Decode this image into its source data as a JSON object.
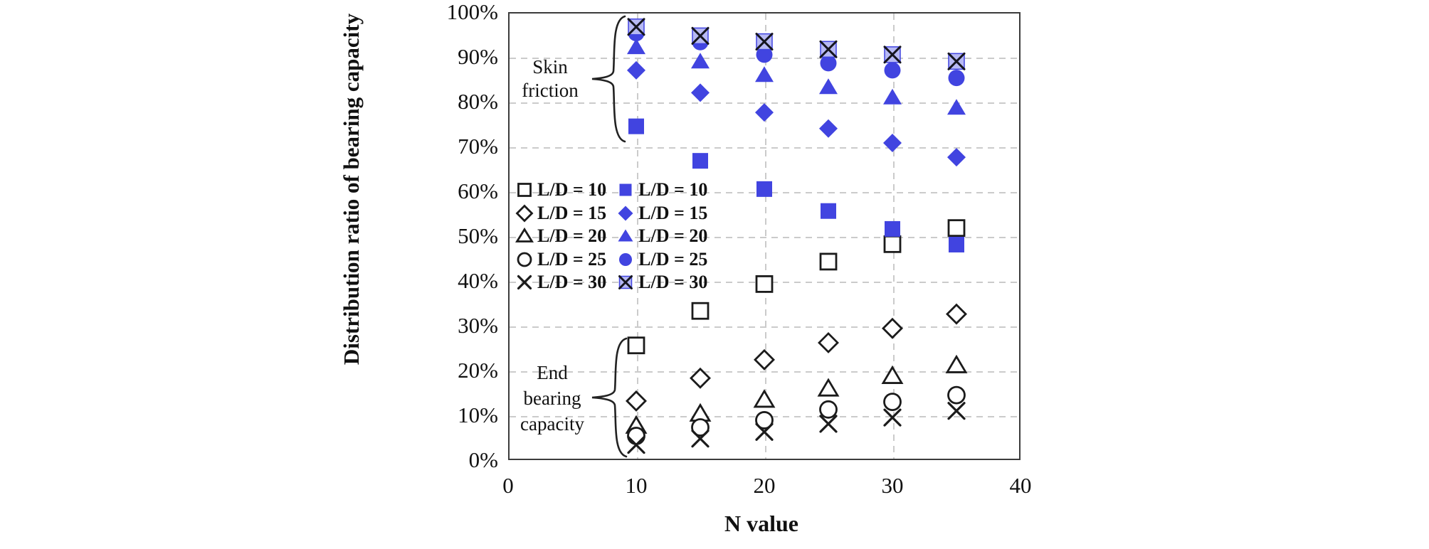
{
  "chart_data": {
    "type": "scatter",
    "title": "",
    "xlabel": "N value",
    "ylabel": "Distribution ratio of bearing capacity",
    "xlim": [
      0,
      40
    ],
    "ylim_pct": [
      0,
      100
    ],
    "x_tick_labels": [
      "0",
      "10",
      "20",
      "30",
      "40"
    ],
    "x_tick_values": [
      0,
      10,
      20,
      30,
      40
    ],
    "y_tick_labels": [
      "0%",
      "10%",
      "20%",
      "30%",
      "40%",
      "50%",
      "60%",
      "70%",
      "80%",
      "90%",
      "100%"
    ],
    "y_tick_values": [
      0,
      10,
      20,
      30,
      40,
      50,
      60,
      70,
      80,
      90,
      100
    ],
    "grid": "dashed, vertical at 10/20/30 and horizontal every 10%",
    "x": [
      10,
      15,
      20,
      25,
      30,
      35
    ],
    "colors": {
      "filled_series": "#4144e0",
      "xsquare_fill": "#b7b9f4",
      "open_stroke": "#1b1b1b",
      "grid": "#cbcbcb",
      "frame": "#3c3c3c"
    },
    "groups": [
      {
        "name": "End bearing capacity",
        "style": "open",
        "series": [
          {
            "label": "L/D = 10",
            "marker": "square",
            "values": [
              25.6,
              33.3,
              39.3,
              44.3,
              48.2,
              51.8
            ]
          },
          {
            "label": "L/D = 15",
            "marker": "diamond",
            "values": [
              13.2,
              18.3,
              22.4,
              26.2,
              29.4,
              32.6
            ]
          },
          {
            "label": "L/D = 20",
            "marker": "triangle",
            "values": [
              7.7,
              10.4,
              13.5,
              16.0,
              18.8,
              21.2
            ]
          },
          {
            "label": "L/D = 25",
            "marker": "circle",
            "values": [
              5.4,
              7.3,
              8.9,
              11.3,
              13.0,
              14.5
            ]
          },
          {
            "label": "L/D = 30",
            "marker": "x",
            "values": [
              3.4,
              4.8,
              6.3,
              8.1,
              9.5,
              11.0
            ]
          }
        ]
      },
      {
        "name": "Skin friction",
        "style": "filled",
        "series": [
          {
            "label": "L/D = 10",
            "marker": "square",
            "values": [
              74.5,
              66.8,
              60.5,
              55.6,
              51.6,
              48.1
            ]
          },
          {
            "label": "L/D = 15",
            "marker": "diamond",
            "values": [
              87.0,
              82.0,
              77.6,
              74.0,
              70.8,
              67.6
            ]
          },
          {
            "label": "L/D = 20",
            "marker": "triangle",
            "values": [
              92.2,
              89.0,
              86.0,
              83.3,
              81.0,
              78.7
            ]
          },
          {
            "label": "L/D = 25",
            "marker": "circle",
            "values": [
              95.3,
              93.3,
              90.5,
              88.6,
              87.0,
              85.3
            ]
          },
          {
            "label": "L/D = 30",
            "marker": "xsquare",
            "values": [
              96.7,
              94.7,
              93.4,
              91.7,
              90.5,
              89.0
            ]
          }
        ]
      }
    ],
    "legend": {
      "position": "inside plot, upper-left area, two columns (open | filled)",
      "rows": [
        "L/D = 10",
        "L/D = 15",
        "L/D = 20",
        "L/D = 25",
        "L/D = 30"
      ]
    },
    "annotations": [
      {
        "id": "skin",
        "text": "Skin\nfriction"
      },
      {
        "id": "end",
        "text": "End\nbearing\ncapacity"
      }
    ]
  }
}
